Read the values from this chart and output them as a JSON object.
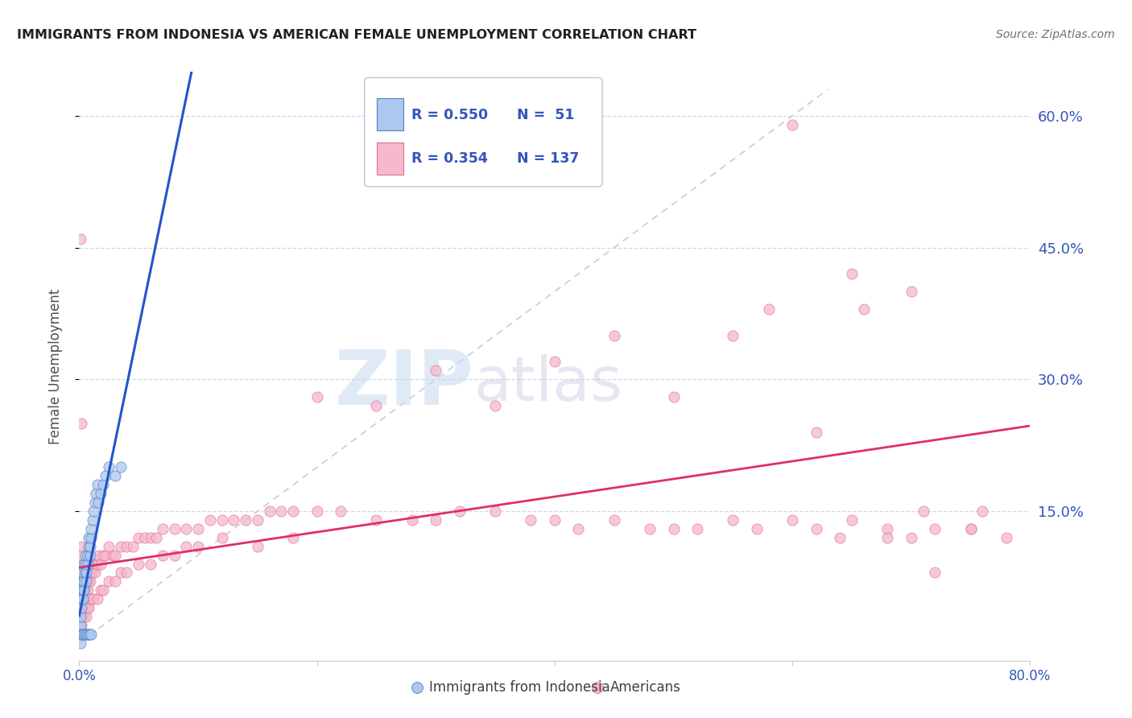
{
  "title": "IMMIGRANTS FROM INDONESIA VS AMERICAN FEMALE UNEMPLOYMENT CORRELATION CHART",
  "source": "Source: ZipAtlas.com",
  "ylabel": "Female Unemployment",
  "xlim": [
    0.0,
    0.8
  ],
  "ylim": [
    -0.02,
    0.65
  ],
  "y_tick_vals_right": [
    0.6,
    0.45,
    0.3,
    0.15
  ],
  "y_tick_labels_right": [
    "60.0%",
    "45.0%",
    "30.0%",
    "15.0%"
  ],
  "watermark_zip": "ZIP",
  "watermark_atlas": "atlas",
  "watermark_color_zip": "#c8d8f0",
  "watermark_color_atlas": "#d0c8e0",
  "background_color": "#ffffff",
  "grid_color": "#d0d8e8",
  "indonesia_color": "#adc8ee",
  "indonesia_edge_color": "#5080c0",
  "americans_color": "#f5b8cc",
  "americans_edge_color": "#e07090",
  "trend_indonesia_color": "#2255cc",
  "trend_americans_color": "#e03060",
  "diagonal_color": "#c8ccd4",
  "title_color": "#202020",
  "source_color": "#707070",
  "axis_label_color": "#505050",
  "tick_label_color": "#3355bb",
  "legend_r1": "R = 0.550",
  "legend_n1": "N =  51",
  "legend_r2": "R = 0.354",
  "legend_n2": "N = 137",
  "indonesia_x": [
    0.001,
    0.001,
    0.001,
    0.002,
    0.002,
    0.002,
    0.002,
    0.002,
    0.003,
    0.003,
    0.003,
    0.003,
    0.004,
    0.004,
    0.004,
    0.005,
    0.005,
    0.005,
    0.006,
    0.006,
    0.007,
    0.007,
    0.008,
    0.008,
    0.009,
    0.009,
    0.01,
    0.01,
    0.011,
    0.012,
    0.013,
    0.014,
    0.015,
    0.016,
    0.018,
    0.02,
    0.022,
    0.025,
    0.03,
    0.035,
    0.001,
    0.001,
    0.002,
    0.003,
    0.004,
    0.005,
    0.006,
    0.007,
    0.008,
    0.009,
    0.01
  ],
  "indonesia_y": [
    0.01,
    0.02,
    0.03,
    0.04,
    0.05,
    0.06,
    0.07,
    0.08,
    0.05,
    0.06,
    0.07,
    0.08,
    0.09,
    0.06,
    0.07,
    0.08,
    0.09,
    0.1,
    0.07,
    0.08,
    0.09,
    0.1,
    0.11,
    0.12,
    0.1,
    0.11,
    0.12,
    0.13,
    0.14,
    0.15,
    0.16,
    0.17,
    0.18,
    0.16,
    0.17,
    0.18,
    0.19,
    0.2,
    0.19,
    0.2,
    0.01,
    0.0,
    0.01,
    0.01,
    0.01,
    0.01,
    0.01,
    0.01,
    0.01,
    0.01,
    0.01
  ],
  "americans_x": [
    0.001,
    0.001,
    0.001,
    0.001,
    0.001,
    0.002,
    0.002,
    0.002,
    0.002,
    0.002,
    0.002,
    0.003,
    0.003,
    0.003,
    0.003,
    0.004,
    0.004,
    0.004,
    0.005,
    0.005,
    0.005,
    0.006,
    0.006,
    0.007,
    0.007,
    0.008,
    0.008,
    0.009,
    0.009,
    0.01,
    0.01,
    0.011,
    0.012,
    0.013,
    0.014,
    0.015,
    0.016,
    0.018,
    0.02,
    0.022,
    0.025,
    0.028,
    0.03,
    0.035,
    0.04,
    0.045,
    0.05,
    0.055,
    0.06,
    0.065,
    0.07,
    0.08,
    0.09,
    0.1,
    0.11,
    0.12,
    0.13,
    0.14,
    0.15,
    0.16,
    0.17,
    0.18,
    0.2,
    0.22,
    0.25,
    0.28,
    0.3,
    0.32,
    0.35,
    0.38,
    0.4,
    0.42,
    0.45,
    0.48,
    0.5,
    0.52,
    0.55,
    0.57,
    0.6,
    0.62,
    0.65,
    0.68,
    0.7,
    0.72,
    0.75,
    0.78,
    0.001,
    0.001,
    0.002,
    0.002,
    0.003,
    0.003,
    0.004,
    0.005,
    0.006,
    0.007,
    0.008,
    0.009,
    0.01,
    0.012,
    0.015,
    0.018,
    0.02,
    0.025,
    0.03,
    0.035,
    0.04,
    0.05,
    0.06,
    0.07,
    0.08,
    0.09,
    0.1,
    0.12,
    0.15,
    0.18,
    0.2,
    0.25,
    0.3,
    0.35,
    0.4,
    0.45,
    0.5,
    0.55,
    0.6,
    0.65,
    0.7,
    0.75,
    0.58,
    0.62,
    0.66,
    0.71,
    0.76,
    0.64,
    0.68,
    0.72,
    0.001,
    0.002
  ],
  "americans_y": [
    0.01,
    0.02,
    0.03,
    0.04,
    0.05,
    0.06,
    0.07,
    0.08,
    0.09,
    0.1,
    0.11,
    0.04,
    0.05,
    0.06,
    0.07,
    0.05,
    0.06,
    0.07,
    0.06,
    0.07,
    0.08,
    0.07,
    0.08,
    0.06,
    0.07,
    0.07,
    0.08,
    0.07,
    0.08,
    0.08,
    0.09,
    0.08,
    0.09,
    0.08,
    0.09,
    0.09,
    0.1,
    0.09,
    0.1,
    0.1,
    0.11,
    0.1,
    0.1,
    0.11,
    0.11,
    0.11,
    0.12,
    0.12,
    0.12,
    0.12,
    0.13,
    0.13,
    0.13,
    0.13,
    0.14,
    0.14,
    0.14,
    0.14,
    0.14,
    0.15,
    0.15,
    0.15,
    0.15,
    0.15,
    0.14,
    0.14,
    0.14,
    0.15,
    0.15,
    0.14,
    0.14,
    0.13,
    0.14,
    0.13,
    0.13,
    0.13,
    0.14,
    0.13,
    0.14,
    0.13,
    0.14,
    0.13,
    0.12,
    0.13,
    0.13,
    0.12,
    0.02,
    0.03,
    0.02,
    0.03,
    0.03,
    0.04,
    0.03,
    0.04,
    0.03,
    0.04,
    0.04,
    0.05,
    0.05,
    0.05,
    0.05,
    0.06,
    0.06,
    0.07,
    0.07,
    0.08,
    0.08,
    0.09,
    0.09,
    0.1,
    0.1,
    0.11,
    0.11,
    0.12,
    0.11,
    0.12,
    0.28,
    0.27,
    0.31,
    0.27,
    0.32,
    0.35,
    0.28,
    0.35,
    0.59,
    0.42,
    0.4,
    0.13,
    0.38,
    0.24,
    0.38,
    0.15,
    0.15,
    0.12,
    0.12,
    0.08,
    0.46,
    0.25
  ]
}
